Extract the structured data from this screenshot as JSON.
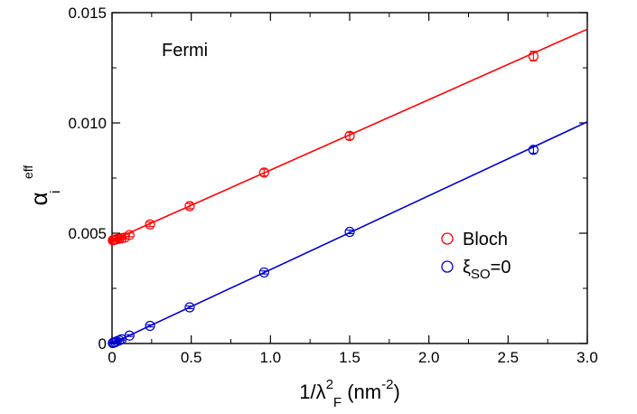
{
  "chart_data": {
    "type": "scatter",
    "annotation": "Fermi",
    "xlabel": {
      "main": "1/λ",
      "sup": "2",
      "sub": "F",
      "unit_open": " (nm",
      "unit_sup": "-2",
      "unit_close": ")"
    },
    "ylabel": {
      "main": "α",
      "sup": "eff",
      "sub": "i"
    },
    "xlim": [
      0,
      3.0
    ],
    "ylim": [
      0,
      0.015
    ],
    "x_ticks": [
      {
        "value": 0,
        "label": "0"
      },
      {
        "value": 0.5,
        "label": "0.5"
      },
      {
        "value": 1.0,
        "label": "1.0"
      },
      {
        "value": 1.5,
        "label": "1.5"
      },
      {
        "value": 2.0,
        "label": "2.0"
      },
      {
        "value": 2.5,
        "label": "2.5"
      },
      {
        "value": 3.0,
        "label": "3.0"
      }
    ],
    "y_ticks": [
      {
        "value": 0,
        "label": "0"
      },
      {
        "value": 0.005,
        "label": "0.005"
      },
      {
        "value": 0.01,
        "label": "0.010"
      },
      {
        "value": 0.015,
        "label": "0.015"
      }
    ],
    "legend_position": "lower-right",
    "series": [
      {
        "name": "Bloch",
        "legend_label": {
          "main": "Bloch",
          "sub": "",
          "tail": ""
        },
        "color": "#ff0000",
        "x": [
          0.005,
          0.01,
          0.015,
          0.02,
          0.03,
          0.045,
          0.06,
          0.08,
          0.11,
          0.24,
          0.49,
          0.96,
          1.5,
          2.66
        ],
        "y": [
          0.00468,
          0.00469,
          0.0047,
          0.00471,
          0.00473,
          0.00475,
          0.00477,
          0.0048,
          0.00492,
          0.0054,
          0.00623,
          0.00775,
          0.00941,
          0.01303
        ],
        "err": [
          5e-05,
          5e-05,
          5e-05,
          5e-05,
          5e-05,
          5e-05,
          5e-05,
          5e-05,
          8e-05,
          0.0001,
          0.00012,
          0.00015,
          0.00016,
          0.00022
        ],
        "fit": {
          "x": [
            0,
            3.0
          ],
          "y": [
            0.00467,
            0.01425
          ]
        }
      },
      {
        "name": "ξSO=0",
        "legend_label": {
          "main": "ξ",
          "sub": "SO",
          "tail": "=0"
        },
        "color": "#0000cc",
        "x": [
          0.005,
          0.01,
          0.02,
          0.03,
          0.045,
          0.06,
          0.11,
          0.24,
          0.49,
          0.96,
          1.5,
          2.66
        ],
        "y": [
          2e-05,
          4e-05,
          6e-05,
          0.0001,
          0.00014,
          0.00019,
          0.00036,
          0.0008,
          0.00164,
          0.00322,
          0.00506,
          0.00878
        ],
        "err": [
          3e-05,
          3e-05,
          3e-05,
          3e-05,
          3e-05,
          3e-05,
          4e-05,
          5e-05,
          6e-05,
          7e-05,
          8e-05,
          0.00015
        ],
        "fit": {
          "x": [
            0,
            3.0
          ],
          "y": [
            0,
            0.01005
          ]
        }
      }
    ]
  }
}
